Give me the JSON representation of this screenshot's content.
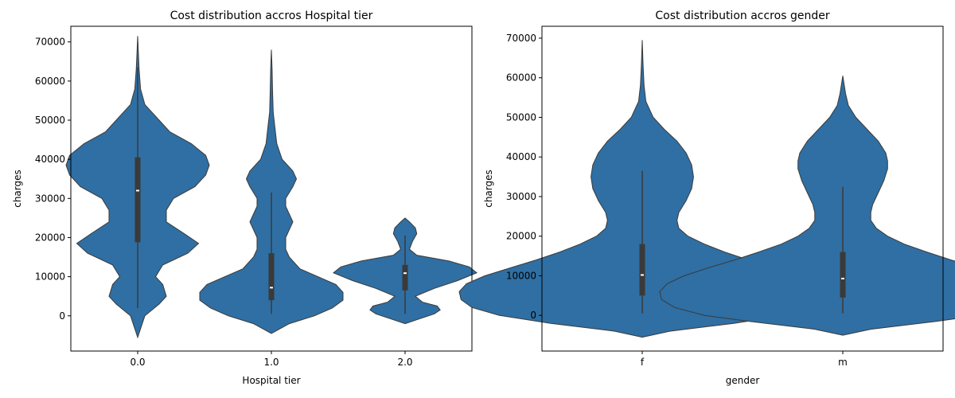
{
  "chart_data": [
    {
      "type": "violin",
      "title": "Cost distribution accros Hospital tier",
      "xlabel": "Hospital tier",
      "ylabel": "charges",
      "categories": [
        "0.0",
        "1.0",
        "2.0"
      ],
      "ylim": [
        -9000,
        74000
      ],
      "yticks": [
        0,
        10000,
        20000,
        30000,
        40000,
        50000,
        60000,
        70000
      ],
      "ytick_labels": [
        "0",
        "10000",
        "20000",
        "30000",
        "40000",
        "50000",
        "60000",
        "70000"
      ],
      "color": "#2f6fa3",
      "grid": false,
      "violins": [
        {
          "category": "0.0",
          "whisker": [
            2000,
            63500
          ],
          "q1": 18800,
          "median": 32000,
          "q3": 40500,
          "density": [
            [
              -5500,
              0
            ],
            [
              0,
              0.02
            ],
            [
              3000,
              0.06
            ],
            [
              5000,
              0.08
            ],
            [
              8000,
              0.07
            ],
            [
              10000,
              0.05
            ],
            [
              13000,
              0.07
            ],
            [
              16000,
              0.14
            ],
            [
              18500,
              0.17
            ],
            [
              21000,
              0.13
            ],
            [
              24000,
              0.08
            ],
            [
              27000,
              0.08
            ],
            [
              30000,
              0.1
            ],
            [
              33000,
              0.16
            ],
            [
              36000,
              0.19
            ],
            [
              38500,
              0.2
            ],
            [
              41000,
              0.19
            ],
            [
              44000,
              0.15
            ],
            [
              47000,
              0.09
            ],
            [
              50000,
              0.06
            ],
            [
              54000,
              0.02
            ],
            [
              58000,
              0.008
            ],
            [
              63000,
              0.004
            ],
            [
              67000,
              0.002
            ],
            [
              71500,
              0
            ]
          ]
        },
        {
          "category": "1.0",
          "whisker": [
            500,
            31500
          ],
          "q1": 4000,
          "median": 7200,
          "q3": 16000,
          "density": [
            [
              -4500,
              0
            ],
            [
              -2000,
              0.05
            ],
            [
              0,
              0.12
            ],
            [
              2000,
              0.17
            ],
            [
              4000,
              0.2
            ],
            [
              6000,
              0.2
            ],
            [
              8000,
              0.18
            ],
            [
              10000,
              0.13
            ],
            [
              12000,
              0.08
            ],
            [
              15000,
              0.05
            ],
            [
              17000,
              0.04
            ],
            [
              20000,
              0.04
            ],
            [
              22000,
              0.05
            ],
            [
              24000,
              0.06
            ],
            [
              26000,
              0.05
            ],
            [
              28000,
              0.04
            ],
            [
              30000,
              0.04
            ],
            [
              33000,
              0.06
            ],
            [
              35000,
              0.07
            ],
            [
              37000,
              0.06
            ],
            [
              40000,
              0.03
            ],
            [
              44000,
              0.015
            ],
            [
              48000,
              0.01
            ],
            [
              52000,
              0.005
            ],
            [
              58000,
              0.003
            ],
            [
              63000,
              0.002
            ],
            [
              68000,
              0
            ]
          ]
        },
        {
          "category": "2.0",
          "whisker": [
            500,
            20500
          ],
          "q1": 6500,
          "median": 10900,
          "q3": 13000,
          "density": [
            [
              -2000,
              0
            ],
            [
              -1000,
              0.08
            ],
            [
              500,
              0.2
            ],
            [
              1500,
              0.24
            ],
            [
              2500,
              0.22
            ],
            [
              3500,
              0.12
            ],
            [
              5000,
              0.07
            ],
            [
              7000,
              0.2
            ],
            [
              9000,
              0.36
            ],
            [
              11000,
              0.49
            ],
            [
              12500,
              0.44
            ],
            [
              14000,
              0.3
            ],
            [
              15500,
              0.08
            ],
            [
              17000,
              0.03
            ],
            [
              19000,
              0.05
            ],
            [
              21000,
              0.08
            ],
            [
              22500,
              0.07
            ],
            [
              24000,
              0.03
            ],
            [
              25000,
              0
            ]
          ]
        }
      ]
    },
    {
      "type": "violin",
      "title": "Cost distribution accros gender",
      "xlabel": "gender",
      "ylabel": "charges",
      "categories": [
        "f",
        "m"
      ],
      "ylim": [
        -9000,
        73000
      ],
      "yticks": [
        0,
        10000,
        20000,
        30000,
        40000,
        50000,
        60000,
        70000
      ],
      "ytick_labels": [
        "0",
        "10000",
        "20000",
        "30000",
        "40000",
        "50000",
        "60000",
        "70000"
      ],
      "color": "#2f6fa3",
      "grid": false,
      "violins": [
        {
          "category": "f",
          "whisker": [
            500,
            36500
          ],
          "q1": 5000,
          "median": 10200,
          "q3": 18000,
          "density": [
            [
              -5500,
              0
            ],
            [
              -4000,
              0.15
            ],
            [
              -2000,
              0.5
            ],
            [
              0,
              0.78
            ],
            [
              2000,
              0.93
            ],
            [
              4000,
              0.99
            ],
            [
              6000,
              1.0
            ],
            [
              8000,
              0.96
            ],
            [
              10000,
              0.86
            ],
            [
              12000,
              0.72
            ],
            [
              14000,
              0.58
            ],
            [
              16000,
              0.45
            ],
            [
              18000,
              0.34
            ],
            [
              20000,
              0.25
            ],
            [
              22000,
              0.2
            ],
            [
              24000,
              0.19
            ],
            [
              26000,
              0.2
            ],
            [
              29000,
              0.24
            ],
            [
              32000,
              0.27
            ],
            [
              35000,
              0.28
            ],
            [
              38000,
              0.27
            ],
            [
              41000,
              0.24
            ],
            [
              44000,
              0.19
            ],
            [
              47000,
              0.12
            ],
            [
              50000,
              0.06
            ],
            [
              54000,
              0.02
            ],
            [
              58000,
              0.01
            ],
            [
              63000,
              0.005
            ],
            [
              69500,
              0
            ]
          ]
        },
        {
          "category": "m",
          "whisker": [
            500,
            32500
          ],
          "q1": 4500,
          "median": 9300,
          "q3": 16000,
          "density": [
            [
              -5000,
              0
            ],
            [
              -3500,
              0.15
            ],
            [
              -1500,
              0.5
            ],
            [
              0,
              0.74
            ],
            [
              2000,
              0.9
            ],
            [
              4000,
              0.97
            ],
            [
              6000,
              0.98
            ],
            [
              8000,
              0.94
            ],
            [
              10000,
              0.85
            ],
            [
              12000,
              0.72
            ],
            [
              14000,
              0.58
            ],
            [
              16000,
              0.45
            ],
            [
              18000,
              0.33
            ],
            [
              20000,
              0.24
            ],
            [
              22000,
              0.18
            ],
            [
              24000,
              0.15
            ],
            [
              26000,
              0.15
            ],
            [
              28000,
              0.16
            ],
            [
              31000,
              0.19
            ],
            [
              34000,
              0.22
            ],
            [
              37000,
              0.24
            ],
            [
              39000,
              0.24
            ],
            [
              41000,
              0.23
            ],
            [
              44000,
              0.19
            ],
            [
              47000,
              0.13
            ],
            [
              50000,
              0.07
            ],
            [
              53000,
              0.03
            ],
            [
              56000,
              0.015
            ],
            [
              60500,
              0
            ]
          ]
        }
      ]
    }
  ]
}
